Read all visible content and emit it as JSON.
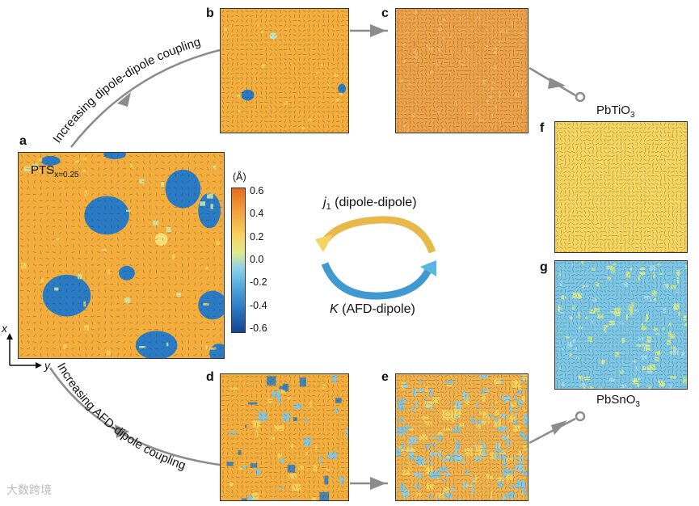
{
  "panels": {
    "a": {
      "label": "a",
      "material_main": "PTS",
      "material_sub": "x=0.25"
    },
    "b": {
      "label": "b"
    },
    "c": {
      "label": "c"
    },
    "d": {
      "label": "d"
    },
    "e": {
      "label": "e"
    },
    "f": {
      "label": "f"
    },
    "g": {
      "label": "g"
    }
  },
  "materials": {
    "top": {
      "main": "PbTiO",
      "sub": "3"
    },
    "bottom": {
      "main": "PbSnO",
      "sub": "3"
    }
  },
  "arrows": {
    "top_text": "Increasing dipole-dipole coupling",
    "bottom_text": "Increasing AFD-dipole coupling"
  },
  "center": {
    "j1_sym": "j",
    "j1_sub": "1",
    "j1_text": " (dipole-dipole)",
    "k_sym": "K",
    "k_text": " (AFD-dipole)"
  },
  "colorbar": {
    "unit": "(Å)",
    "ticks": [
      "0.6",
      "0.4",
      "0.2",
      "0.0",
      "-0.2",
      "-0.4",
      "-0.6"
    ]
  },
  "axes": {
    "x": "x",
    "y": "y"
  },
  "watermark": "大数跨境",
  "colors": {
    "orange": "#f2ad3c",
    "yellow": "#f4d35e",
    "light_blue": "#7cc6e6",
    "dark_blue": "#2a7bc4",
    "arrow_gray": "#8c8c8c"
  }
}
